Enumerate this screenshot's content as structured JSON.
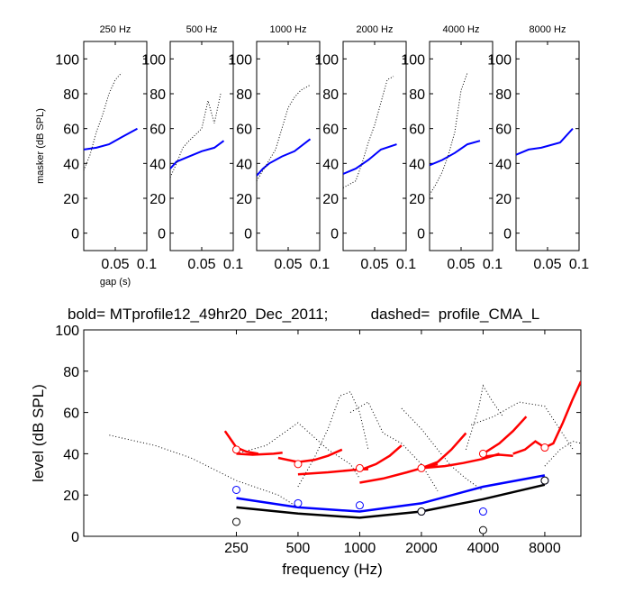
{
  "chart_data": [
    {
      "type": "line",
      "title": "250 Hz",
      "ylabel": "masker (dB SPL)",
      "xlabel": "gap (s)",
      "xlim": [
        0,
        0.1
      ],
      "ylim": [
        -10,
        110
      ],
      "xticks": [
        "0.05",
        "0.1"
      ],
      "yticks": [
        "0",
        "20",
        "40",
        "60",
        "80",
        "100"
      ],
      "series": [
        {
          "style": "solid",
          "color": "#0000ff",
          "x": [
            0,
            0.02,
            0.04,
            0.06,
            0.085
          ],
          "y": [
            48,
            49,
            51,
            55,
            60
          ]
        },
        {
          "style": "dotted",
          "color": "#000000",
          "x": [
            0,
            0.01,
            0.02,
            0.03,
            0.04,
            0.05,
            0.06
          ],
          "y": [
            36,
            45,
            58,
            68,
            80,
            88,
            92
          ]
        }
      ]
    },
    {
      "type": "line",
      "title": "500 Hz",
      "ylabel": "",
      "xlabel": "",
      "xlim": [
        0,
        0.1
      ],
      "ylim": [
        -10,
        110
      ],
      "xticks": [
        "0.05",
        "0.1"
      ],
      "yticks": [
        "0",
        "20",
        "40",
        "60",
        "80",
        "100"
      ],
      "series": [
        {
          "style": "solid",
          "color": "#0000ff",
          "x": [
            0,
            0.01,
            0.03,
            0.05,
            0.07,
            0.085
          ],
          "y": [
            37,
            41,
            44,
            47,
            49,
            53
          ]
        },
        {
          "style": "dotted",
          "color": "#000000",
          "x": [
            0,
            0.01,
            0.02,
            0.03,
            0.05,
            0.06,
            0.07,
            0.08
          ],
          "y": [
            32,
            40,
            49,
            53,
            60,
            76,
            63,
            80
          ]
        }
      ]
    },
    {
      "type": "line",
      "title": "1000 Hz",
      "ylabel": "",
      "xlabel": "",
      "xlim": [
        0,
        0.1
      ],
      "ylim": [
        -10,
        110
      ],
      "xticks": [
        "0.05",
        "0.1"
      ],
      "yticks": [
        "0",
        "20",
        "40",
        "60",
        "80",
        "100"
      ],
      "series": [
        {
          "style": "solid",
          "color": "#0000ff",
          "x": [
            0,
            0.01,
            0.02,
            0.04,
            0.06,
            0.085
          ],
          "y": [
            33,
            37,
            40,
            44,
            47,
            54
          ]
        },
        {
          "style": "dotted",
          "color": "#000000",
          "x": [
            0,
            0.01,
            0.02,
            0.03,
            0.04,
            0.05,
            0.06,
            0.07,
            0.085
          ],
          "y": [
            30,
            36,
            42,
            48,
            60,
            72,
            78,
            82,
            85
          ]
        }
      ]
    },
    {
      "type": "line",
      "title": "2000 Hz",
      "ylabel": "",
      "xlabel": "",
      "xlim": [
        0,
        0.1
      ],
      "ylim": [
        -10,
        110
      ],
      "xticks": [
        "0.05",
        "0.1"
      ],
      "yticks": [
        "0",
        "20",
        "40",
        "60",
        "80",
        "100"
      ],
      "series": [
        {
          "style": "solid",
          "color": "#0000ff",
          "x": [
            0,
            0.02,
            0.04,
            0.06,
            0.085
          ],
          "y": [
            34,
            37,
            42,
            48,
            51
          ]
        },
        {
          "style": "dotted",
          "color": "#000000",
          "x": [
            0,
            0.02,
            0.03,
            0.04,
            0.05,
            0.06,
            0.07,
            0.08
          ],
          "y": [
            26,
            30,
            40,
            52,
            62,
            75,
            88,
            90
          ]
        }
      ]
    },
    {
      "type": "line",
      "title": "4000 Hz",
      "ylabel": "",
      "xlabel": "",
      "xlim": [
        0,
        0.1
      ],
      "ylim": [
        -10,
        110
      ],
      "xticks": [
        "0.05",
        "0.1"
      ],
      "yticks": [
        "0",
        "20",
        "40",
        "60",
        "80",
        "100"
      ],
      "series": [
        {
          "style": "solid",
          "color": "#0000ff",
          "x": [
            0,
            0.02,
            0.04,
            0.06,
            0.08
          ],
          "y": [
            39,
            42,
            46,
            51,
            53
          ]
        },
        {
          "style": "dotted",
          "color": "#000000",
          "x": [
            0,
            0.01,
            0.02,
            0.03,
            0.04,
            0.05,
            0.06
          ],
          "y": [
            22,
            28,
            35,
            45,
            58,
            82,
            92
          ]
        }
      ]
    },
    {
      "type": "line",
      "title": "8000 Hz",
      "ylabel": "",
      "xlabel": "",
      "xlim": [
        0,
        0.1
      ],
      "ylim": [
        -10,
        110
      ],
      "xticks": [
        "0.05",
        "0.1"
      ],
      "yticks": [
        "0",
        "20",
        "40",
        "60",
        "80",
        "100"
      ],
      "series": [
        {
          "style": "solid",
          "color": "#0000ff",
          "x": [
            0,
            0.02,
            0.04,
            0.07,
            0.09
          ],
          "y": [
            45,
            48,
            49,
            52,
            60
          ]
        }
      ]
    },
    {
      "type": "line",
      "title": "bold= MTprofile12_49hr20_Dec_2011;          dashed=  profile_CMA_L",
      "xlabel": "frequency (Hz)",
      "ylabel": "level (dB SPL)",
      "xscale": "log2",
      "xlim": [
        45,
        12000
      ],
      "ylim": [
        0,
        100
      ],
      "xticks": [
        250,
        500,
        1000,
        2000,
        4000,
        8000
      ],
      "xticklabels": [
        "250",
        "500",
        "1000",
        "2000",
        "4000",
        "8000"
      ],
      "yticks": [
        "0",
        "20",
        "40",
        "60",
        "80",
        "100"
      ],
      "series": [
        {
          "style": "solid",
          "color": "#000000",
          "x": [
            250,
            500,
            1000,
            2000,
            4000,
            8000
          ],
          "y": [
            14,
            11,
            9,
            12,
            18,
            25
          ]
        },
        {
          "style": "solid",
          "color": "#0000ff",
          "x": [
            250,
            500,
            1000,
            2000,
            4000,
            8000
          ],
          "y": [
            18.5,
            14,
            12,
            16,
            24,
            29.5
          ]
        },
        {
          "style": "solid",
          "color": "#ff0000",
          "x": [
            220,
            250,
            280,
            320
          ],
          "y": [
            51,
            43,
            41,
            40
          ]
        },
        {
          "style": "solid",
          "color": "#ff0000",
          "x": [
            250,
            300,
            380,
            420
          ],
          "y": [
            40,
            39.5,
            40,
            40.5
          ]
        },
        {
          "style": "solid",
          "color": "#ff0000",
          "x": [
            400,
            500,
            600,
            700,
            820
          ],
          "y": [
            38,
            36,
            37,
            39,
            42
          ]
        },
        {
          "style": "solid",
          "color": "#ff0000",
          "x": [
            500,
            700,
            900,
            1000,
            1100
          ],
          "y": [
            30,
            31,
            32,
            32.5,
            32.5
          ]
        },
        {
          "style": "solid",
          "color": "#ff0000",
          "x": [
            1000,
            1200,
            1400,
            1600
          ],
          "y": [
            32,
            35,
            39,
            44
          ]
        },
        {
          "style": "solid",
          "color": "#ff0000",
          "x": [
            1000,
            1300,
            1700,
            2000,
            2400
          ],
          "y": [
            26,
            28,
            31,
            33,
            35
          ]
        },
        {
          "style": "solid",
          "color": "#ff0000",
          "x": [
            2000,
            2400,
            2800,
            3300
          ],
          "y": [
            33,
            36,
            42,
            50
          ]
        },
        {
          "style": "solid",
          "color": "#ff0000",
          "x": [
            2000,
            2600,
            3200,
            4000,
            4800
          ],
          "y": [
            33,
            34,
            35.5,
            37.5,
            40
          ]
        },
        {
          "style": "solid",
          "color": "#ff0000",
          "x": [
            4000,
            4800,
            5600,
            6500
          ],
          "y": [
            40,
            45,
            51,
            58
          ]
        },
        {
          "style": "solid",
          "color": "#ff0000",
          "x": [
            4000,
            4800,
            5600
          ],
          "y": [
            38.5,
            39.5,
            39
          ]
        },
        {
          "style": "solid",
          "color": "#ff0000",
          "x": [
            5600,
            6400,
            7200,
            8000
          ],
          "y": [
            40,
            42,
            46,
            43
          ]
        },
        {
          "style": "solid",
          "color": "#ff0000",
          "x": [
            8000,
            8800,
            9800,
            10900,
            12000
          ],
          "y": [
            43,
            45,
            55,
            66,
            75
          ]
        },
        {
          "style": "dotted",
          "color": "#000000",
          "x": [
            60,
            100,
            150,
            250,
            400,
            500
          ],
          "y": [
            49,
            44,
            38,
            27,
            20,
            14
          ]
        },
        {
          "style": "dotted",
          "color": "#000000",
          "x": [
            250,
            350,
            500,
            700,
            900,
            1000
          ],
          "y": [
            40,
            44,
            55,
            42,
            35,
            28
          ]
        },
        {
          "style": "dotted",
          "color": "#000000",
          "x": [
            500,
            600,
            700,
            800,
            900,
            1000,
            1100
          ],
          "y": [
            24,
            38,
            52,
            68,
            70,
            60,
            42
          ]
        },
        {
          "style": "dotted",
          "color": "#000000",
          "x": [
            900,
            1100,
            1300,
            1600,
            2000,
            2400
          ],
          "y": [
            60,
            65,
            50,
            45,
            35,
            22
          ]
        },
        {
          "style": "dotted",
          "color": "#000000",
          "x": [
            1600,
            2000,
            2400,
            2800,
            3300,
            4000
          ],
          "y": [
            62,
            52,
            42,
            34,
            28,
            22
          ]
        },
        {
          "style": "dotted",
          "color": "#000000",
          "x": [
            3300,
            3800,
            4000,
            4400,
            5000
          ],
          "y": [
            42,
            62,
            73,
            66,
            58
          ]
        },
        {
          "style": "dotted",
          "color": "#000000",
          "x": [
            3500,
            4500,
            6000,
            8000,
            11000
          ],
          "y": [
            54,
            58,
            65,
            63,
            42
          ]
        },
        {
          "style": "dotted",
          "color": "#000000",
          "x": [
            8000,
            9500,
            11000,
            12000
          ],
          "y": [
            34,
            42,
            46,
            45
          ]
        }
      ],
      "markers": [
        {
          "name": "red-circles",
          "color": "#ff0000",
          "x": [
            250,
            500,
            1000,
            2000,
            4000,
            8000
          ],
          "y": [
            42,
            35,
            33,
            33,
            40,
            43
          ]
        },
        {
          "name": "blue-circles",
          "color": "#0000ff",
          "x": [
            250,
            500,
            1000,
            2000,
            4000,
            8000
          ],
          "y": [
            22.5,
            16,
            15,
            12,
            12,
            27
          ]
        },
        {
          "name": "black-circles",
          "color": "#000000",
          "x": [
            250,
            2000,
            4000,
            8000
          ],
          "y": [
            7,
            12,
            3,
            27
          ]
        }
      ]
    }
  ]
}
